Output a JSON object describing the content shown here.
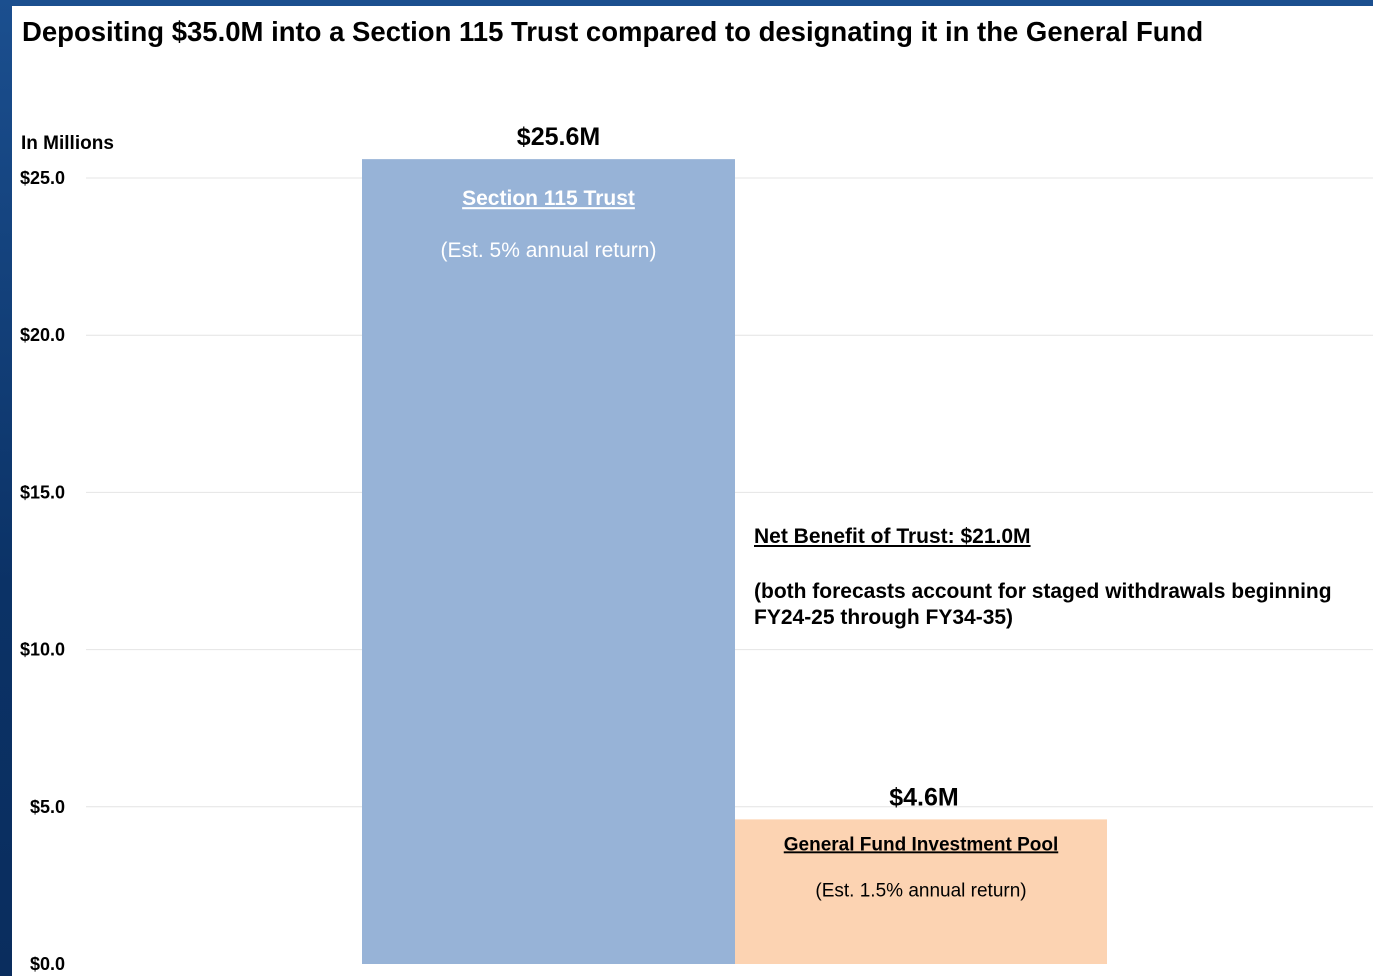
{
  "chart_data": {
    "type": "bar",
    "title": "Depositing $35.0M into a Section 115 Trust compared to designating it in the General Fund",
    "ylabel": "In Millions",
    "ylim": [
      0,
      25
    ],
    "yticks": [
      "$0.0",
      "$5.0",
      "$10.0",
      "$15.0",
      "$20.0",
      "$25.0"
    ],
    "grid": true,
    "series": [
      {
        "name": "Section 115 Trust",
        "subtitle": "(Est. 5% annual return)",
        "value": 25.6,
        "data_label": "$25.6M",
        "color": "#97b3d7"
      },
      {
        "name": "General Fund Investment Pool",
        "subtitle": "(Est. 1.5% annual return)",
        "value": 4.6,
        "data_label": "$4.6M",
        "color": "#fcd3b2"
      }
    ],
    "annotation": {
      "title": "Net Benefit of Trust: $21.0M",
      "text": "(both forecasts account for staged withdrawals beginning FY24-25 through FY34-35)"
    }
  }
}
